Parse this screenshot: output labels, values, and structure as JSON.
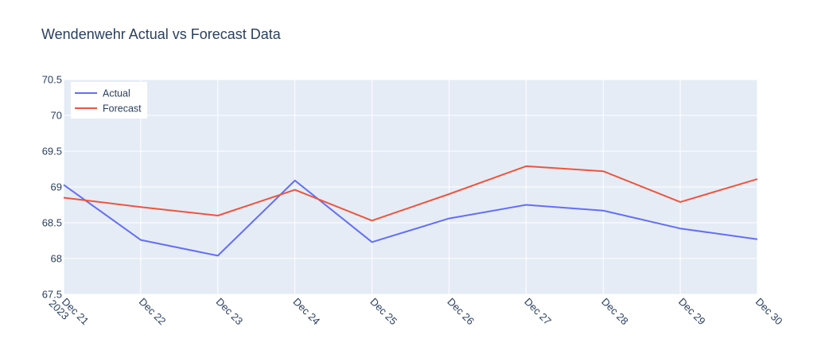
{
  "chart_data": {
    "type": "line",
    "title": "Wendenwehr Actual vs Forecast Data",
    "xlabel": "",
    "ylabel": "",
    "x": [
      "Dec 21",
      "Dec 22",
      "Dec 23",
      "Dec 24",
      "Dec 25",
      "Dec 26",
      "Dec 27",
      "Dec 28",
      "Dec 29",
      "Dec 30"
    ],
    "x_year_label": "2023",
    "y_ticks": [
      "67.5",
      "68",
      "68.5",
      "69",
      "69.5",
      "70",
      "70.5"
    ],
    "ylim": [
      67.5,
      70.5
    ],
    "grid": true,
    "legend_position": "top-left",
    "series": [
      {
        "name": "Actual",
        "color": "#636efa",
        "values": [
          69.03,
          68.26,
          68.04,
          69.09,
          68.23,
          68.56,
          68.75,
          68.67,
          68.42,
          68.27
        ]
      },
      {
        "name": "Forecast",
        "color": "#ef553b",
        "values": [
          68.85,
          68.72,
          68.6,
          68.96,
          68.53,
          68.9,
          69.29,
          69.22,
          68.79,
          69.11
        ]
      }
    ]
  }
}
